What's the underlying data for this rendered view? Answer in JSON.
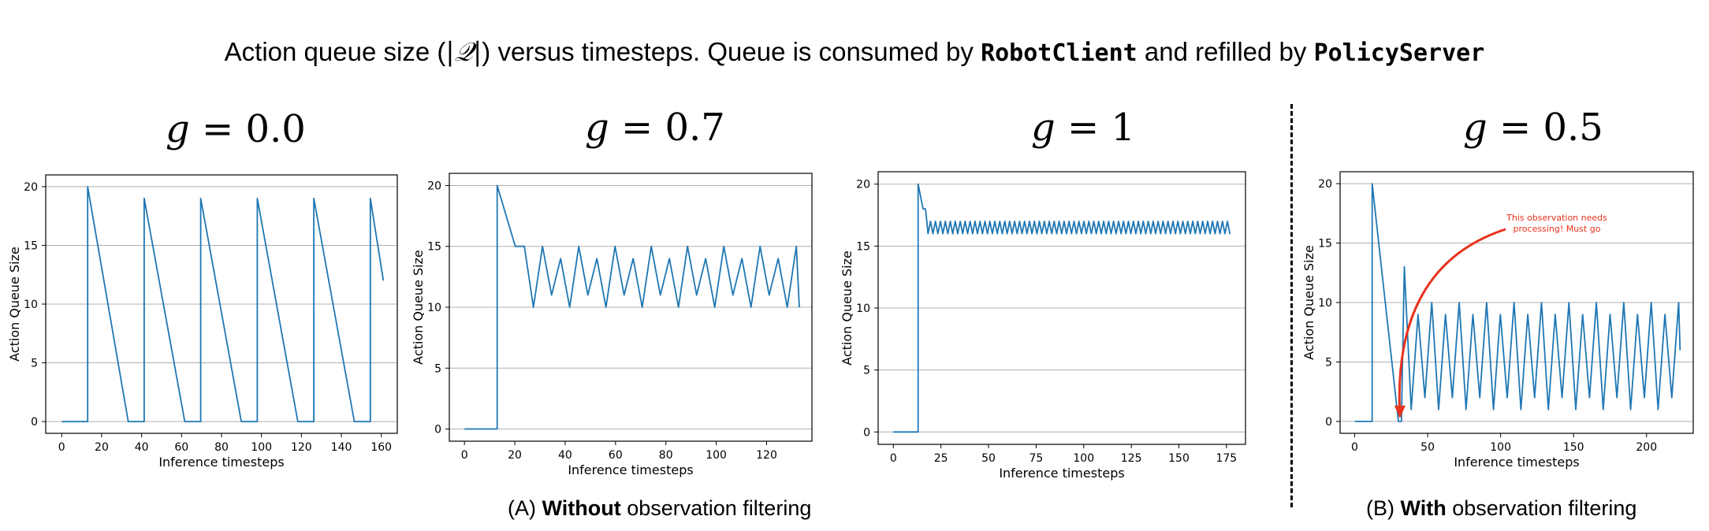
{
  "title": {
    "part1": "Action queue size (",
    "symbol": "|𝒬|",
    "part2": ") versus timesteps. Queue is consumed by ",
    "client": "RobotClient",
    "part3": " and refilled by ",
    "server": "PolicyServer"
  },
  "panels": [
    {
      "g_label": "g = ",
      "g_value": "0.0"
    },
    {
      "g_label": "g = ",
      "g_value": "0.7"
    },
    {
      "g_label": "g = ",
      "g_value": "1"
    },
    {
      "g_label": "g = ",
      "g_value": "0.5"
    }
  ],
  "captions": {
    "a_prefix": "(A) ",
    "a_bold": "Without",
    "a_rest": " observation filtering",
    "b_prefix": "(B) ",
    "b_bold": "With",
    "b_rest": " observation filtering"
  },
  "annotation": {
    "line1": "This observation  needs",
    "line2": "processing! Must go",
    "color": "#e8321e"
  },
  "chart_data": [
    {
      "type": "line",
      "xlabel": "Inference timesteps",
      "ylabel": "Action Queue Size",
      "xlim": [
        -8,
        168
      ],
      "ylim": [
        -1,
        21
      ],
      "xticks": [
        0,
        20,
        40,
        60,
        80,
        100,
        120,
        140,
        160
      ],
      "yticks": [
        0,
        5,
        10,
        15,
        20
      ],
      "grid": "horizontal",
      "series": [
        {
          "color": "#1f77b4",
          "x": [],
          "y": []
        }
      ],
      "cycles": {
        "start": 13,
        "peaks": [
          20,
          19,
          19,
          19,
          19,
          19
        ],
        "period": 28.3,
        "zero_hold": 8,
        "end_x": 161,
        "end_y": 12
      }
    },
    {
      "type": "line",
      "xlabel": "Inference timesteps",
      "ylabel": "Action Queue Size",
      "xlim": [
        -6,
        138
      ],
      "ylim": [
        -1,
        21
      ],
      "xticks": [
        0,
        20,
        40,
        60,
        80,
        100,
        120
      ],
      "yticks": [
        0,
        5,
        10,
        15,
        20
      ],
      "grid": "horizontal",
      "series": [
        {
          "color": "#1f77b4",
          "x": [],
          "y": []
        }
      ],
      "oscillation": {
        "start": 13,
        "peak": 20,
        "tops": [
          14,
          15
        ],
        "bottoms": [
          10,
          11
        ],
        "half_period": 3.6,
        "end_x": 133
      }
    },
    {
      "type": "line",
      "xlabel": "Inference timesteps",
      "ylabel": "Action Queue Size",
      "xlim": [
        -8,
        185
      ],
      "ylim": [
        -1,
        21
      ],
      "xticks": [
        0,
        25,
        50,
        75,
        100,
        125,
        150,
        175
      ],
      "yticks": [
        0,
        5,
        10,
        15,
        20
      ],
      "grid": "horizontal",
      "series": [
        {
          "color": "#1f77b4",
          "x": [],
          "y": []
        }
      ],
      "oscillation": {
        "start": 13,
        "peak": 20,
        "tops": [
          17
        ],
        "bottoms": [
          16
        ],
        "half_period": 1.3,
        "end_x": 177
      }
    },
    {
      "type": "line",
      "xlabel": "Inference timesteps",
      "ylabel": "Action Queue Size",
      "xlim": [
        -10,
        232
      ],
      "ylim": [
        -1,
        21
      ],
      "xticks": [
        0,
        50,
        100,
        150,
        200
      ],
      "yticks": [
        0,
        5,
        10,
        15,
        20
      ],
      "grid": "horizontal",
      "series": [
        {
          "color": "#1f77b4",
          "x": [],
          "y": []
        }
      ],
      "oscillation": {
        "start": 12,
        "peak": 20,
        "dip_x": 31,
        "second_peak": 13,
        "tops": [
          10,
          9
        ],
        "bottoms": [
          1,
          2
        ],
        "half_period": 4.7,
        "end_x": 223,
        "end_y": 6
      }
    }
  ]
}
